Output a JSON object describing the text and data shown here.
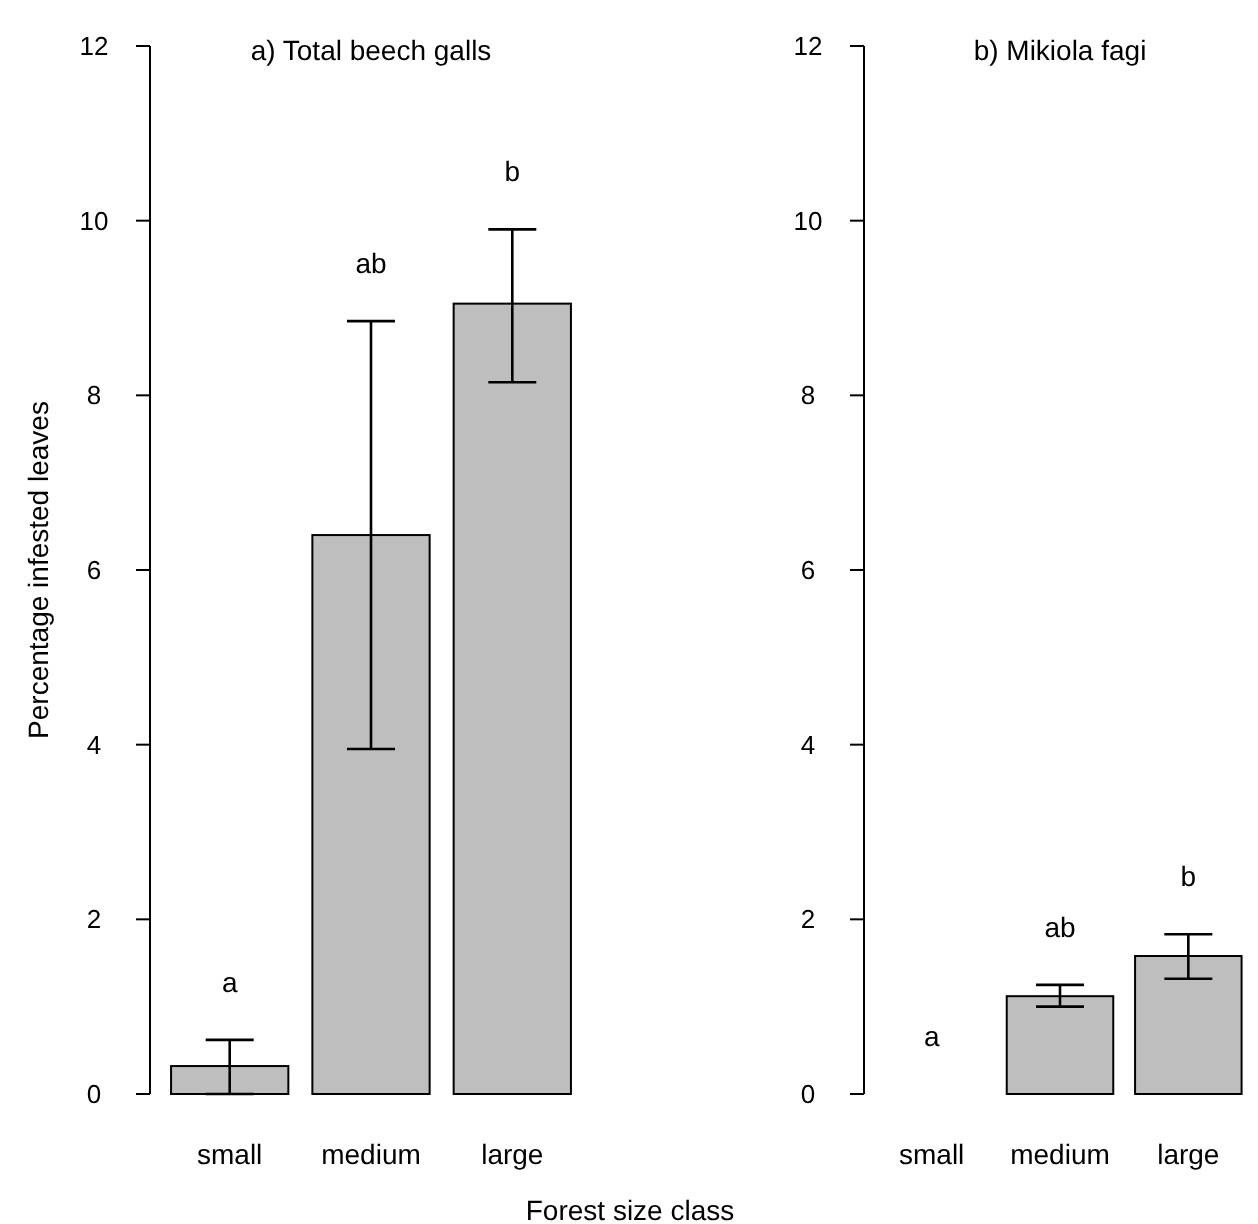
{
  "chart_data": [
    {
      "type": "bar",
      "title": "a) Total beech galls",
      "ylabel": "Percentage infested leaves",
      "xlabel": "Forest size class",
      "categories": [
        "small",
        "medium",
        "large"
      ],
      "values": [
        0.32,
        6.4,
        9.05
      ],
      "errors": [
        [
          0,
          0.62
        ],
        [
          3.95,
          8.85
        ],
        [
          8.15,
          9.9
        ]
      ],
      "color": "#bebebe",
      "ylim": [
        0,
        12
      ],
      "yticks": [
        0,
        2,
        4,
        6,
        8,
        10,
        12
      ],
      "grid": false,
      "annotations": [
        {
          "text": "a",
          "x": "small",
          "y": 0.62
        },
        {
          "text": "ab",
          "x": "medium",
          "y": 8.85
        },
        {
          "text": "b",
          "x": "large",
          "y": 9.9
        }
      ]
    },
    {
      "type": "bar",
      "title": "b) Mikiola fagi",
      "categories": [
        "small",
        "medium",
        "large"
      ],
      "values": [
        0,
        1.12,
        1.58
      ],
      "errors": [
        null,
        [
          1.0,
          1.25
        ],
        [
          1.32,
          1.83
        ]
      ],
      "color": "#bebebe",
      "ylim": [
        0,
        12
      ],
      "yticks": [
        0,
        2,
        4,
        6,
        8,
        10,
        12
      ],
      "grid": false,
      "annotations": [
        {
          "text": "a",
          "x": "small",
          "y": 0
        },
        {
          "text": "ab",
          "x": "medium",
          "y": 1.25
        },
        {
          "text": "b",
          "x": "large",
          "y": 1.83
        }
      ]
    }
  ]
}
